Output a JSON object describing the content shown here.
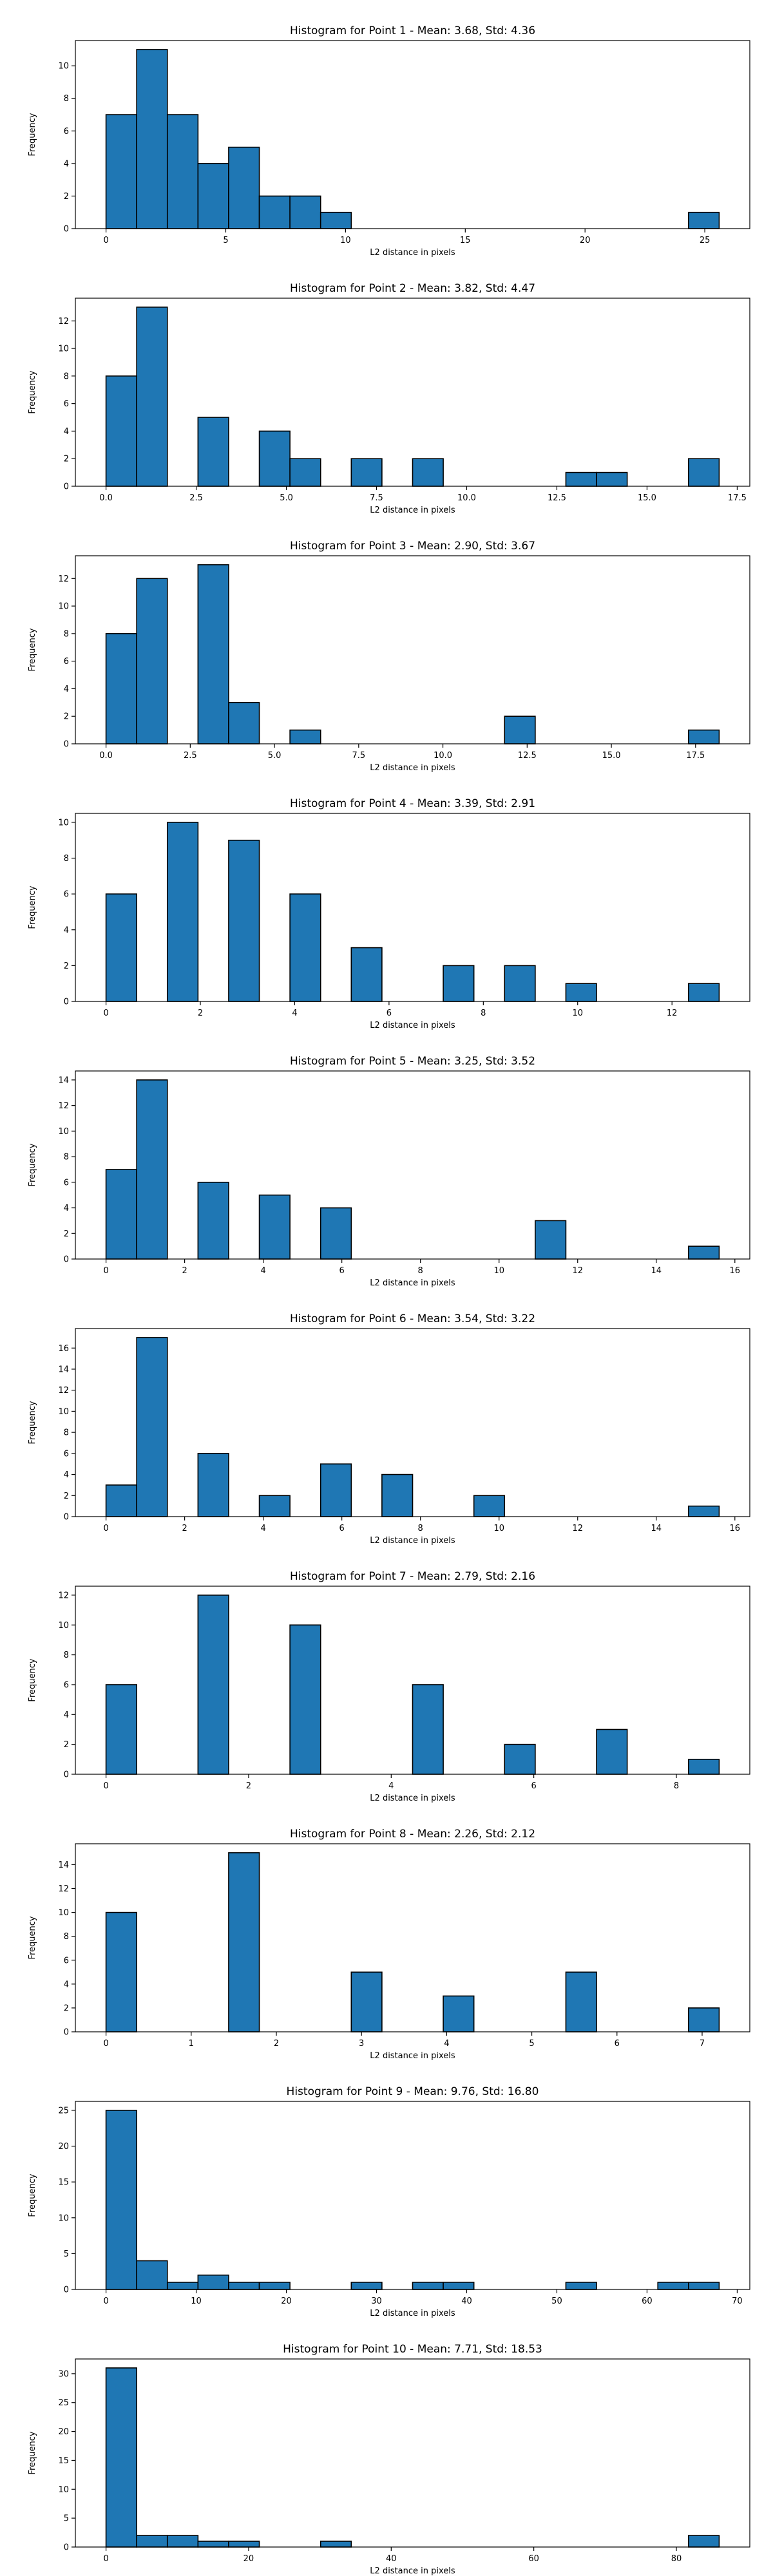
{
  "chart_data": [
    {
      "type": "bar",
      "title": "Histogram for Point 1 - Mean: 3.68, Std: 4.36",
      "xlabel": "L2 distance in pixels",
      "ylabel": "Frequency",
      "bin_edges": [
        0,
        1.28,
        2.56,
        3.84,
        5.12,
        6.4,
        7.68,
        8.96,
        10.24,
        11.52,
        12.8,
        14.08,
        15.36,
        16.64,
        17.92,
        19.2,
        20.48,
        21.76,
        23.04,
        24.32,
        25.6
      ],
      "values": [
        7,
        11,
        7,
        4,
        5,
        2,
        2,
        1,
        0,
        0,
        0,
        0,
        0,
        0,
        0,
        0,
        0,
        0,
        0,
        1
      ],
      "xlim": [
        -1.28,
        26.88
      ],
      "ylim": [
        0,
        11.55
      ],
      "xticks": [
        0,
        5,
        10,
        15,
        20,
        25
      ],
      "xtick_labels": [
        "0",
        "5",
        "10",
        "15",
        "20",
        "25"
      ],
      "yticks": [
        0,
        2,
        4,
        6,
        8,
        10
      ],
      "ytick_labels": [
        "0",
        "2",
        "4",
        "6",
        "8",
        "10"
      ],
      "bar_color": "#1f77b4",
      "edge_color": "#000000"
    },
    {
      "type": "bar",
      "title": "Histogram for Point 2 - Mean: 3.82, Std: 4.47",
      "xlabel": "L2 distance in pixels",
      "ylabel": "Frequency",
      "bin_edges": [
        0,
        0.85,
        1.7,
        2.55,
        3.4,
        4.25,
        5.1,
        5.95,
        6.8,
        7.65,
        8.5,
        9.35,
        10.2,
        11.05,
        11.9,
        12.75,
        13.6,
        14.45,
        15.3,
        16.15,
        17.0
      ],
      "values": [
        8,
        13,
        0,
        5,
        0,
        4,
        2,
        0,
        2,
        0,
        2,
        0,
        0,
        0,
        0,
        1,
        1,
        0,
        0,
        2
      ],
      "xlim": [
        -0.85,
        17.85
      ],
      "ylim": [
        0,
        13.65
      ],
      "xticks": [
        0,
        2.5,
        5,
        7.5,
        10,
        12.5,
        15,
        17.5
      ],
      "xtick_labels": [
        "0.0",
        "2.5",
        "5.0",
        "7.5",
        "10.0",
        "12.5",
        "15.0",
        "17.5"
      ],
      "yticks": [
        0,
        2,
        4,
        6,
        8,
        10,
        12
      ],
      "ytick_labels": [
        "0",
        "2",
        "4",
        "6",
        "8",
        "10",
        "12"
      ],
      "bar_color": "#1f77b4",
      "edge_color": "#000000"
    },
    {
      "type": "bar",
      "title": "Histogram for Point 3 - Mean: 2.90, Std: 3.67",
      "xlabel": "L2 distance in pixels",
      "ylabel": "Frequency",
      "bin_edges": [
        0,
        0.91,
        1.82,
        2.73,
        3.64,
        4.55,
        5.46,
        6.37,
        7.28,
        8.19,
        9.1,
        10.01,
        10.92,
        11.83,
        12.74,
        13.65,
        14.56,
        15.47,
        16.38,
        17.29,
        18.2
      ],
      "values": [
        8,
        12,
        0,
        13,
        3,
        0,
        1,
        0,
        0,
        0,
        0,
        0,
        0,
        2,
        0,
        0,
        0,
        0,
        0,
        1
      ],
      "xlim": [
        -0.91,
        19.11
      ],
      "ylim": [
        0,
        13.65
      ],
      "xticks": [
        0,
        2.5,
        5,
        7.5,
        10,
        12.5,
        15,
        17.5
      ],
      "xtick_labels": [
        "0.0",
        "2.5",
        "5.0",
        "7.5",
        "10.0",
        "12.5",
        "15.0",
        "17.5"
      ],
      "yticks": [
        0,
        2,
        4,
        6,
        8,
        10,
        12
      ],
      "ytick_labels": [
        "0",
        "2",
        "4",
        "6",
        "8",
        "10",
        "12"
      ],
      "bar_color": "#1f77b4",
      "edge_color": "#000000"
    },
    {
      "type": "bar",
      "title": "Histogram for Point 4 - Mean: 3.39, Std: 2.91",
      "xlabel": "L2 distance in pixels",
      "ylabel": "Frequency",
      "bin_edges": [
        0,
        0.65,
        1.3,
        1.95,
        2.6,
        3.25,
        3.9,
        4.55,
        5.2,
        5.85,
        6.5,
        7.15,
        7.8,
        8.45,
        9.1,
        9.75,
        10.4,
        11.05,
        11.7,
        12.35,
        13.0
      ],
      "values": [
        6,
        0,
        10,
        0,
        9,
        0,
        6,
        0,
        3,
        0,
        0,
        2,
        0,
        2,
        0,
        1,
        0,
        0,
        0,
        1
      ],
      "xlim": [
        -0.65,
        13.65
      ],
      "ylim": [
        0,
        10.5
      ],
      "xticks": [
        0,
        2,
        4,
        6,
        8,
        10,
        12
      ],
      "xtick_labels": [
        "0",
        "2",
        "4",
        "6",
        "8",
        "10",
        "12"
      ],
      "yticks": [
        0,
        2,
        4,
        6,
        8,
        10
      ],
      "ytick_labels": [
        "0",
        "2",
        "4",
        "6",
        "8",
        "10"
      ],
      "bar_color": "#1f77b4",
      "edge_color": "#000000"
    },
    {
      "type": "bar",
      "title": "Histogram for Point 5 - Mean: 3.25, Std: 3.52",
      "xlabel": "L2 distance in pixels",
      "ylabel": "Frequency",
      "bin_edges": [
        0,
        0.78,
        1.56,
        2.34,
        3.12,
        3.9,
        4.68,
        5.46,
        6.24,
        7.02,
        7.8,
        8.58,
        9.36,
        10.14,
        10.92,
        11.7,
        12.48,
        13.26,
        14.04,
        14.82,
        15.6
      ],
      "values": [
        7,
        14,
        0,
        6,
        0,
        5,
        0,
        4,
        0,
        0,
        0,
        0,
        0,
        0,
        3,
        0,
        0,
        0,
        0,
        1
      ],
      "xlim": [
        -0.78,
        16.38
      ],
      "ylim": [
        0,
        14.7
      ],
      "xticks": [
        0,
        2,
        4,
        6,
        8,
        10,
        12,
        14,
        16
      ],
      "xtick_labels": [
        "0",
        "2",
        "4",
        "6",
        "8",
        "10",
        "12",
        "14",
        "16"
      ],
      "yticks": [
        0,
        2,
        4,
        6,
        8,
        10,
        12,
        14
      ],
      "ytick_labels": [
        "0",
        "2",
        "4",
        "6",
        "8",
        "10",
        "12",
        "14"
      ],
      "bar_color": "#1f77b4",
      "edge_color": "#000000"
    },
    {
      "type": "bar",
      "title": "Histogram for Point 6 - Mean: 3.54, Std: 3.22",
      "xlabel": "L2 distance in pixels",
      "ylabel": "Frequency",
      "bin_edges": [
        0,
        0.78,
        1.56,
        2.34,
        3.12,
        3.9,
        4.68,
        5.46,
        6.24,
        7.02,
        7.8,
        8.58,
        9.36,
        10.14,
        10.92,
        11.7,
        12.48,
        13.26,
        14.04,
        14.82,
        15.6
      ],
      "values": [
        3,
        17,
        0,
        6,
        0,
        2,
        0,
        5,
        0,
        4,
        0,
        0,
        2,
        0,
        0,
        0,
        0,
        0,
        0,
        1
      ],
      "xlim": [
        -0.78,
        16.38
      ],
      "ylim": [
        0,
        17.85
      ],
      "xticks": [
        0,
        2,
        4,
        6,
        8,
        10,
        12,
        14,
        16
      ],
      "xtick_labels": [
        "0",
        "2",
        "4",
        "6",
        "8",
        "10",
        "12",
        "14",
        "16"
      ],
      "yticks": [
        0,
        2,
        4,
        6,
        8,
        10,
        12,
        14,
        16
      ],
      "ytick_labels": [
        "0",
        "2",
        "4",
        "6",
        "8",
        "10",
        "12",
        "14",
        "16"
      ],
      "bar_color": "#1f77b4",
      "edge_color": "#000000"
    },
    {
      "type": "bar",
      "title": "Histogram for Point 7 - Mean: 2.79, Std: 2.16",
      "xlabel": "L2 distance in pixels",
      "ylabel": "Frequency",
      "bin_edges": [
        0,
        0.43,
        0.86,
        1.29,
        1.72,
        2.15,
        2.58,
        3.01,
        3.44,
        3.87,
        4.3,
        4.73,
        5.16,
        5.59,
        6.02,
        6.45,
        6.88,
        7.31,
        7.74,
        8.17,
        8.6
      ],
      "values": [
        6,
        0,
        0,
        12,
        0,
        0,
        10,
        0,
        0,
        0,
        6,
        0,
        0,
        2,
        0,
        0,
        3,
        0,
        0,
        1
      ],
      "xlim": [
        -0.43,
        9.03
      ],
      "ylim": [
        0,
        12.6
      ],
      "xticks": [
        0,
        2,
        4,
        6,
        8
      ],
      "xtick_labels": [
        "0",
        "2",
        "4",
        "6",
        "8"
      ],
      "yticks": [
        0,
        2,
        4,
        6,
        8,
        10,
        12
      ],
      "ytick_labels": [
        "0",
        "2",
        "4",
        "6",
        "8",
        "10",
        "12"
      ],
      "bar_color": "#1f77b4",
      "edge_color": "#000000"
    },
    {
      "type": "bar",
      "title": "Histogram for Point 8 - Mean: 2.26, Std: 2.12",
      "xlabel": "L2 distance in pixels",
      "ylabel": "Frequency",
      "bin_edges": [
        0,
        0.36,
        0.72,
        1.08,
        1.44,
        1.8,
        2.16,
        2.52,
        2.88,
        3.24,
        3.6,
        3.96,
        4.32,
        4.68,
        5.04,
        5.4,
        5.76,
        6.12,
        6.48,
        6.84,
        7.2
      ],
      "values": [
        10,
        0,
        0,
        0,
        15,
        0,
        0,
        0,
        5,
        0,
        0,
        3,
        0,
        0,
        0,
        5,
        0,
        0,
        0,
        2
      ],
      "xlim": [
        -0.36,
        7.56
      ],
      "ylim": [
        0,
        15.75
      ],
      "xticks": [
        0,
        1,
        2,
        3,
        4,
        5,
        6,
        7
      ],
      "xtick_labels": [
        "0",
        "1",
        "2",
        "3",
        "4",
        "5",
        "6",
        "7"
      ],
      "yticks": [
        0,
        2,
        4,
        6,
        8,
        10,
        12,
        14
      ],
      "ytick_labels": [
        "0",
        "2",
        "4",
        "6",
        "8",
        "10",
        "12",
        "14"
      ],
      "bar_color": "#1f77b4",
      "edge_color": "#000000"
    },
    {
      "type": "bar",
      "title": "Histogram for Point 9 - Mean: 9.76, Std: 16.80",
      "xlabel": "L2 distance in pixels",
      "ylabel": "Frequency",
      "bin_edges": [
        0,
        3.4,
        6.8,
        10.2,
        13.6,
        17.0,
        20.4,
        23.8,
        27.2,
        30.6,
        34.0,
        37.4,
        40.8,
        44.2,
        47.6,
        51.0,
        54.4,
        57.8,
        61.2,
        64.6,
        68.0
      ],
      "values": [
        25,
        4,
        1,
        2,
        1,
        1,
        0,
        0,
        1,
        0,
        1,
        1,
        0,
        0,
        0,
        1,
        0,
        0,
        1,
        1
      ],
      "xlim": [
        -3.4,
        71.4
      ],
      "ylim": [
        0,
        26.25
      ],
      "xticks": [
        0,
        10,
        20,
        30,
        40,
        50,
        60,
        70
      ],
      "xtick_labels": [
        "0",
        "10",
        "20",
        "30",
        "40",
        "50",
        "60",
        "70"
      ],
      "yticks": [
        0,
        5,
        10,
        15,
        20,
        25
      ],
      "ytick_labels": [
        "0",
        "5",
        "10",
        "15",
        "20",
        "25"
      ],
      "bar_color": "#1f77b4",
      "edge_color": "#000000"
    },
    {
      "type": "bar",
      "title": "Histogram for Point 10 - Mean: 7.71, Std: 18.53",
      "xlabel": "L2 distance in pixels",
      "ylabel": "Frequency",
      "bin_edges": [
        0,
        4.3,
        8.6,
        12.9,
        17.2,
        21.5,
        25.8,
        30.1,
        34.4,
        38.7,
        43.0,
        47.3,
        51.6,
        55.9,
        60.2,
        64.5,
        68.8,
        73.1,
        77.4,
        81.7,
        86.0
      ],
      "values": [
        31,
        2,
        2,
        1,
        1,
        0,
        0,
        1,
        0,
        0,
        0,
        0,
        0,
        0,
        0,
        0,
        0,
        0,
        0,
        2
      ],
      "xlim": [
        -4.3,
        90.3
      ],
      "ylim": [
        0,
        32.55
      ],
      "xticks": [
        0,
        20,
        40,
        60,
        80
      ],
      "xtick_labels": [
        "0",
        "20",
        "40",
        "60",
        "80"
      ],
      "yticks": [
        0,
        5,
        10,
        15,
        20,
        25,
        30
      ],
      "ytick_labels": [
        "0",
        "5",
        "10",
        "15",
        "20",
        "25",
        "30"
      ],
      "bar_color": "#1f77b4",
      "edge_color": "#000000"
    }
  ]
}
